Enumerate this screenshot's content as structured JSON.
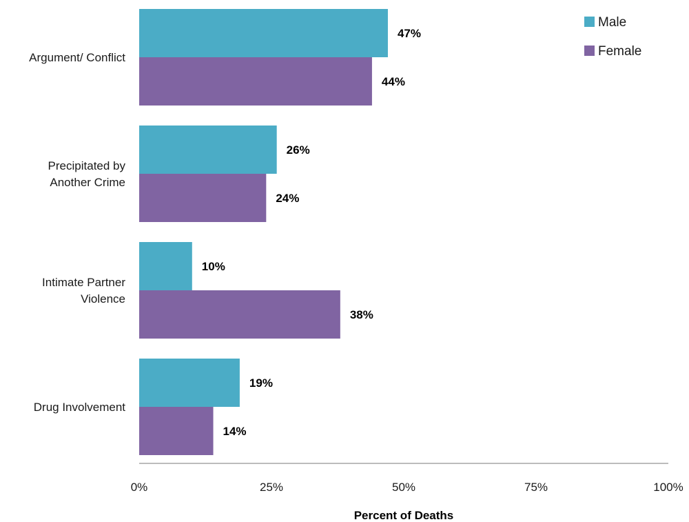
{
  "chart_data": {
    "type": "bar",
    "orientation": "horizontal",
    "categories": [
      [
        "Argument/ Conflict"
      ],
      [
        "Precipitated by",
        "Another Crime"
      ],
      [
        "Intimate Partner",
        "Violence"
      ],
      [
        "Drug Involvement"
      ]
    ],
    "series": [
      {
        "name": "Male",
        "color": "#4bacc6",
        "values": [
          47,
          26,
          10,
          19
        ],
        "labels": [
          "47%",
          "26%",
          "10%",
          "19%"
        ]
      },
      {
        "name": "Female",
        "color": "#8064a2",
        "values": [
          44,
          24,
          38,
          14
        ],
        "labels": [
          "44%",
          "24%",
          "38%",
          "14%"
        ]
      }
    ],
    "xlim": [
      0,
      100
    ],
    "xticks": [
      0,
      25,
      50,
      75,
      100
    ],
    "xtick_labels": [
      "0%",
      "25%",
      "50%",
      "75%",
      "100%"
    ],
    "xlabel": "Percent of Deaths",
    "ylabel": "",
    "title": "",
    "grid": false,
    "legend_position": "top-right"
  }
}
